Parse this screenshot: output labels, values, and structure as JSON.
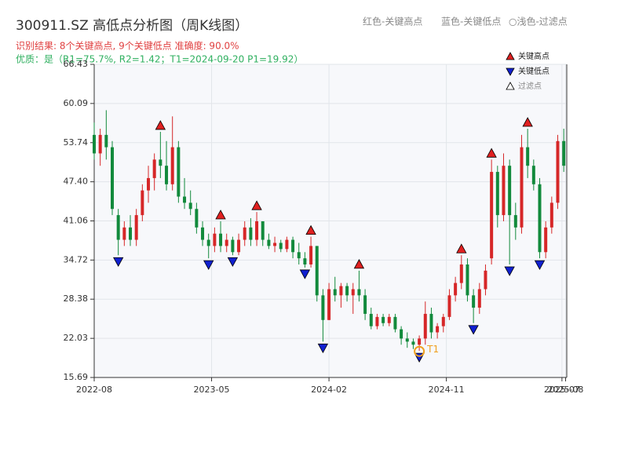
{
  "chart_data": {
    "type": "candlestick",
    "title": "300911.SZ 高低点分析图（周K线图）",
    "subtitle": "识别结果: 8个关键高点, 9个关键低点  准确度: 90.0%",
    "quality": "优质：是（R1=75.7%, R2=1.42；T1=2024-09-20 P1=19.92）",
    "top_legend": [
      "红色-关键高点",
      "蓝色-关键低点",
      "○浅色-过滤点"
    ],
    "legend": [
      {
        "name": "关键高点",
        "color": "#e02020"
      },
      {
        "name": "关键低点",
        "color": "#1020d0"
      },
      {
        "name": "过滤点",
        "color": "#ffffff"
      }
    ],
    "up_color": "#d62728",
    "down_color": "#128a3c",
    "ohlc": [
      [
        55,
        57,
        51,
        52
      ],
      [
        52,
        56,
        50,
        55
      ],
      [
        55,
        59,
        51,
        53
      ],
      [
        53,
        54,
        42,
        43
      ],
      [
        42,
        43,
        35.5,
        38
      ],
      [
        38,
        41,
        37,
        40
      ],
      [
        40,
        42,
        37,
        38
      ],
      [
        38,
        43,
        37,
        42
      ],
      [
        42,
        47,
        41,
        46
      ],
      [
        46,
        50,
        44,
        48
      ],
      [
        48,
        52,
        46,
        51
      ],
      [
        51,
        55.5,
        48,
        50
      ],
      [
        50,
        54,
        46,
        47
      ],
      [
        47,
        58,
        46,
        53
      ],
      [
        53,
        54,
        44,
        45
      ],
      [
        45,
        48,
        43,
        44
      ],
      [
        44,
        46,
        42,
        43
      ],
      [
        43,
        44,
        39,
        40
      ],
      [
        40,
        41,
        37,
        38
      ],
      [
        38,
        39,
        35,
        37
      ],
      [
        37,
        40,
        36,
        39
      ],
      [
        39,
        41,
        36,
        37
      ],
      [
        37,
        39,
        36,
        38
      ],
      [
        38,
        38.5,
        35.5,
        36
      ],
      [
        36,
        39,
        35.5,
        38
      ],
      [
        38,
        41,
        37,
        40
      ],
      [
        40,
        41.5,
        37,
        38
      ],
      [
        38,
        42.5,
        37,
        41
      ],
      [
        41,
        41,
        37,
        38
      ],
      [
        38,
        39,
        36.5,
        37
      ],
      [
        37,
        38.5,
        36,
        37.5
      ],
      [
        37.5,
        38,
        36,
        36.5
      ],
      [
        36.5,
        38.5,
        36,
        38
      ],
      [
        38,
        38.5,
        35,
        36
      ],
      [
        36,
        37.5,
        34,
        35
      ],
      [
        35,
        36,
        33.5,
        34
      ],
      [
        34,
        38.5,
        33.5,
        37
      ],
      [
        37,
        37,
        28,
        29
      ],
      [
        29,
        30,
        21.5,
        25
      ],
      [
        25,
        31,
        25,
        30
      ],
      [
        30,
        32,
        28,
        29
      ],
      [
        29,
        31,
        27,
        30.5
      ],
      [
        30.5,
        31,
        28,
        29
      ],
      [
        29,
        31,
        26,
        30
      ],
      [
        30,
        33,
        28,
        29
      ],
      [
        29,
        30,
        25,
        26
      ],
      [
        26,
        27,
        23.5,
        24
      ],
      [
        24,
        26,
        23.5,
        25.5
      ],
      [
        25.5,
        26,
        24,
        24.5
      ],
      [
        24.5,
        26,
        24,
        25.5
      ],
      [
        25.5,
        26,
        23,
        23.5
      ],
      [
        23.5,
        24,
        21,
        22
      ],
      [
        22,
        23,
        20.5,
        21.5
      ],
      [
        21.5,
        22,
        20.3,
        21
      ],
      [
        21,
        22.5,
        20,
        22
      ],
      [
        22,
        28,
        21,
        26
      ],
      [
        26,
        27,
        22,
        23
      ],
      [
        23,
        24.5,
        22,
        24
      ],
      [
        24,
        26,
        23,
        25.5
      ],
      [
        25.5,
        30,
        25,
        29
      ],
      [
        29,
        32,
        28,
        31
      ],
      [
        31,
        35.5,
        30,
        34
      ],
      [
        34,
        35,
        28,
        29
      ],
      [
        29,
        30,
        24.5,
        27
      ],
      [
        27,
        31,
        26,
        30
      ],
      [
        30,
        34,
        29,
        33
      ],
      [
        35,
        51,
        34,
        49
      ],
      [
        49,
        50,
        40,
        42
      ],
      [
        42,
        52,
        41,
        50
      ],
      [
        50,
        51,
        34,
        42
      ],
      [
        42,
        44,
        38,
        40
      ],
      [
        40,
        55,
        39,
        53
      ],
      [
        53,
        56,
        48,
        50
      ],
      [
        50,
        51,
        46,
        47
      ],
      [
        47,
        48,
        35,
        36
      ],
      [
        36,
        41,
        35,
        40
      ],
      [
        40,
        45,
        39,
        44
      ],
      [
        44,
        55,
        43,
        54
      ],
      [
        54,
        56,
        49,
        50
      ]
    ],
    "key_highs": [
      {
        "x": 11,
        "y": 55.5
      },
      {
        "x": 21,
        "y": 41
      },
      {
        "x": 27,
        "y": 42.5
      },
      {
        "x": 36,
        "y": 38.5
      },
      {
        "x": 44,
        "y": 33
      },
      {
        "x": 61,
        "y": 35.5
      },
      {
        "x": 66,
        "y": 51
      },
      {
        "x": 72,
        "y": 56
      }
    ],
    "key_lows": [
      {
        "x": 4,
        "y": 35.5
      },
      {
        "x": 19,
        "y": 35
      },
      {
        "x": 23,
        "y": 35.5
      },
      {
        "x": 35,
        "y": 33.5
      },
      {
        "x": 38,
        "y": 21.5
      },
      {
        "x": 54,
        "y": 20
      },
      {
        "x": 63,
        "y": 24.5
      },
      {
        "x": 69,
        "y": 34
      },
      {
        "x": 74,
        "y": 35
      }
    ],
    "annotation": {
      "text": "T1",
      "x": 54,
      "y": 19.92,
      "color": "#f0a020"
    },
    "xlim": [
      0,
      78.5
    ],
    "xticks": [
      {
        "value": 0,
        "label": "2022-08"
      },
      {
        "value": 19.5,
        "label": "2023-05"
      },
      {
        "value": 39,
        "label": "2024-02"
      },
      {
        "value": 58.5,
        "label": "2024-11"
      },
      {
        "value": 77.7,
        "label": "2025-07"
      },
      {
        "value": 78.3,
        "label": "2025-08"
      }
    ],
    "ylim": [
      15.69,
      66.43
    ],
    "yticks": [
      15.69,
      22.03,
      28.38,
      34.72,
      41.06,
      {
        "value": 47.4,
        "label": "47.40"
      },
      53.74,
      60.09,
      66.43
    ],
    "grid": true
  }
}
